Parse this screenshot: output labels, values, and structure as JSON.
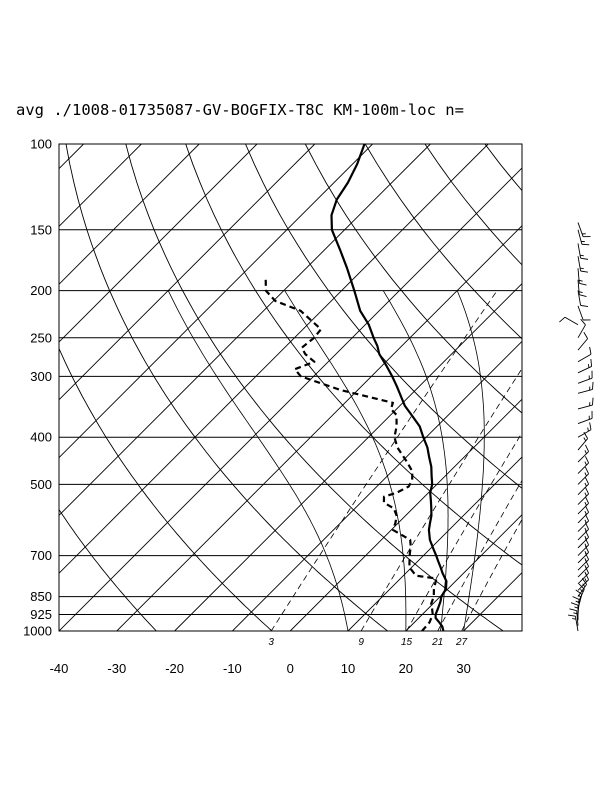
{
  "chart_data": {
    "type": "skew-t-log-p sounding",
    "title": "avg ./1008-01735087-GV-BOGFIX-T8C KM-100m-loc n=",
    "pressure_levels": [
      100,
      150,
      200,
      250,
      300,
      400,
      500,
      700,
      850,
      925,
      1000
    ],
    "pressure_labels": [
      "100",
      "150",
      "200",
      "250",
      "300",
      "400",
      "500",
      "700",
      "850",
      "925",
      "1000"
    ],
    "temperature_ticks": [
      -40,
      -30,
      -20,
      -10,
      0,
      10,
      20,
      30
    ],
    "temperature_labels": [
      "-40",
      "-30",
      "-20",
      "-10",
      "0",
      "10",
      "20",
      "30"
    ],
    "mixing_ratio_labels": [
      "3",
      "9",
      "15",
      "21",
      "27"
    ],
    "ylim": [
      1000,
      100
    ],
    "xlim_at_1000hPa": [
      -40,
      40
    ],
    "y_scale": "log pressure",
    "temperature_series": {
      "style": "solid",
      "points": [
        {
          "p": 1000,
          "t": 26.5
        },
        {
          "p": 980,
          "t": 25.6
        },
        {
          "p": 960,
          "t": 24.3
        },
        {
          "p": 940,
          "t": 22.9
        },
        {
          "p": 925,
          "t": 22.3
        },
        {
          "p": 900,
          "t": 21.7
        },
        {
          "p": 870,
          "t": 20.9
        },
        {
          "p": 850,
          "t": 20.2
        },
        {
          "p": 820,
          "t": 19.7
        },
        {
          "p": 790,
          "t": 18.4
        },
        {
          "p": 760,
          "t": 16.3
        },
        {
          "p": 740,
          "t": 15.0
        },
        {
          "p": 720,
          "t": 13.6
        },
        {
          "p": 700,
          "t": 12.2
        },
        {
          "p": 680,
          "t": 10.7
        },
        {
          "p": 650,
          "t": 8.4
        },
        {
          "p": 620,
          "t": 6.5
        },
        {
          "p": 600,
          "t": 5.5
        },
        {
          "p": 580,
          "t": 4.5
        },
        {
          "p": 560,
          "t": 3.2
        },
        {
          "p": 540,
          "t": 1.8
        },
        {
          "p": 520,
          "t": 0.3
        },
        {
          "p": 500,
          "t": -0.8
        },
        {
          "p": 480,
          "t": -2.4
        },
        {
          "p": 460,
          "t": -4.0
        },
        {
          "p": 440,
          "t": -6.0
        },
        {
          "p": 420,
          "t": -8.0
        },
        {
          "p": 400,
          "t": -10.5
        },
        {
          "p": 380,
          "t": -13.0
        },
        {
          "p": 360,
          "t": -16.4
        },
        {
          "p": 345,
          "t": -19.1
        },
        {
          "p": 330,
          "t": -21.4
        },
        {
          "p": 315,
          "t": -23.8
        },
        {
          "p": 300,
          "t": -26.4
        },
        {
          "p": 285,
          "t": -29.3
        },
        {
          "p": 270,
          "t": -32.5
        },
        {
          "p": 260,
          "t": -34.2
        },
        {
          "p": 250,
          "t": -36.3
        },
        {
          "p": 235,
          "t": -39.4
        },
        {
          "p": 220,
          "t": -43.3
        },
        {
          "p": 200,
          "t": -47.8
        },
        {
          "p": 180,
          "t": -52.9
        },
        {
          "p": 165,
          "t": -57.3
        },
        {
          "p": 150,
          "t": -62.2
        },
        {
          "p": 140,
          "t": -64.8
        },
        {
          "p": 130,
          "t": -66.6
        },
        {
          "p": 120,
          "t": -67.6
        },
        {
          "p": 110,
          "t": -69.2
        },
        {
          "p": 100,
          "t": -71.4
        }
      ]
    },
    "dewpoint_series": {
      "style": "dashed",
      "points": [
        {
          "p": 1000,
          "t": 22.8
        },
        {
          "p": 960,
          "t": 22.6
        },
        {
          "p": 925,
          "t": 21.8
        },
        {
          "p": 900,
          "t": 20.7
        },
        {
          "p": 880,
          "t": 19.7
        },
        {
          "p": 850,
          "t": 18.9
        },
        {
          "p": 820,
          "t": 17.6
        },
        {
          "p": 780,
          "t": 16.2
        },
        {
          "p": 770,
          "t": 12.2
        },
        {
          "p": 740,
          "t": 9.6
        },
        {
          "p": 700,
          "t": 7.6
        },
        {
          "p": 670,
          "t": 6.2
        },
        {
          "p": 650,
          "t": 5.0
        },
        {
          "p": 620,
          "t": 0.3
        },
        {
          "p": 600,
          "t": -0.5
        },
        {
          "p": 580,
          "t": -1.5
        },
        {
          "p": 560,
          "t": -3.3
        },
        {
          "p": 545,
          "t": -6.0
        },
        {
          "p": 530,
          "t": -7.0
        },
        {
          "p": 520,
          "t": -5.5
        },
        {
          "p": 505,
          "t": -4.5
        },
        {
          "p": 490,
          "t": -5.0
        },
        {
          "p": 470,
          "t": -6.5
        },
        {
          "p": 450,
          "t": -9.0
        },
        {
          "p": 420,
          "t": -13.2
        },
        {
          "p": 400,
          "t": -15.5
        },
        {
          "p": 380,
          "t": -17.0
        },
        {
          "p": 360,
          "t": -19.0
        },
        {
          "p": 350,
          "t": -21.0
        },
        {
          "p": 340,
          "t": -21.7
        },
        {
          "p": 320,
          "t": -33.0
        },
        {
          "p": 300,
          "t": -42.2
        },
        {
          "p": 290,
          "t": -44.5
        },
        {
          "p": 280,
          "t": -42.4
        },
        {
          "p": 270,
          "t": -45.3
        },
        {
          "p": 262,
          "t": -47.0
        },
        {
          "p": 250,
          "t": -46.6
        },
        {
          "p": 240,
          "t": -46.9
        },
        {
          "p": 230,
          "t": -50.2
        },
        {
          "p": 220,
          "t": -53.6
        },
        {
          "p": 210,
          "t": -59.7
        },
        {
          "p": 200,
          "t": -63.1
        },
        {
          "p": 190,
          "t": -65.0
        }
      ]
    },
    "wind_barbs": [
      {
        "p": 1000,
        "dir": 350,
        "kt": 15
      },
      {
        "p": 975,
        "dir": 355,
        "kt": 15
      },
      {
        "p": 950,
        "dir": 0,
        "kt": 15
      },
      {
        "p": 925,
        "dir": 5,
        "kt": 15
      },
      {
        "p": 900,
        "dir": 15,
        "kt": 15
      },
      {
        "p": 875,
        "dir": 25,
        "kt": 15
      },
      {
        "p": 850,
        "dir": 35,
        "kt": 15
      },
      {
        "p": 825,
        "dir": 45,
        "kt": 15
      },
      {
        "p": 800,
        "dir": 45,
        "kt": 15
      },
      {
        "p": 775,
        "dir": 45,
        "kt": 15
      },
      {
        "p": 750,
        "dir": 45,
        "kt": 15
      },
      {
        "p": 725,
        "dir": 45,
        "kt": 15
      },
      {
        "p": 700,
        "dir": 45,
        "kt": 15
      },
      {
        "p": 675,
        "dir": 45,
        "kt": 15
      },
      {
        "p": 650,
        "dir": 45,
        "kt": 15
      },
      {
        "p": 625,
        "dir": 45,
        "kt": 15
      },
      {
        "p": 600,
        "dir": 45,
        "kt": 15
      },
      {
        "p": 575,
        "dir": 45,
        "kt": 15
      },
      {
        "p": 550,
        "dir": 45,
        "kt": 15
      },
      {
        "p": 525,
        "dir": 45,
        "kt": 15
      },
      {
        "p": 500,
        "dir": 45,
        "kt": 15
      },
      {
        "p": 475,
        "dir": 45,
        "kt": 15
      },
      {
        "p": 450,
        "dir": 45,
        "kt": 15
      },
      {
        "p": 425,
        "dir": 40,
        "kt": 15
      },
      {
        "p": 400,
        "dir": 60,
        "kt": 15
      },
      {
        "p": 375,
        "dir": 70,
        "kt": 15
      },
      {
        "p": 350,
        "dir": 75,
        "kt": 15
      },
      {
        "p": 325,
        "dir": 75,
        "kt": 15
      },
      {
        "p": 310,
        "dir": 70,
        "kt": 15
      },
      {
        "p": 295,
        "dir": 65,
        "kt": 15
      },
      {
        "p": 280,
        "dir": 60,
        "kt": 10
      },
      {
        "p": 265,
        "dir": 40,
        "kt": 10
      },
      {
        "p": 250,
        "dir": 30,
        "kt": 10
      },
      {
        "p": 235,
        "dir": 300,
        "kt": 10
      },
      {
        "p": 215,
        "dir": 160,
        "kt": 10
      },
      {
        "p": 200,
        "dir": 170,
        "kt": 10
      },
      {
        "p": 190,
        "dir": 175,
        "kt": 15
      },
      {
        "p": 180,
        "dir": 175,
        "kt": 15
      },
      {
        "p": 170,
        "dir": 170,
        "kt": 15
      },
      {
        "p": 160,
        "dir": 170,
        "kt": 15
      },
      {
        "p": 150,
        "dir": 165,
        "kt": 15
      },
      {
        "p": 145,
        "dir": 160,
        "kt": 15
      }
    ],
    "colors": {
      "lines": "#000000",
      "background": "#ffffff"
    }
  }
}
